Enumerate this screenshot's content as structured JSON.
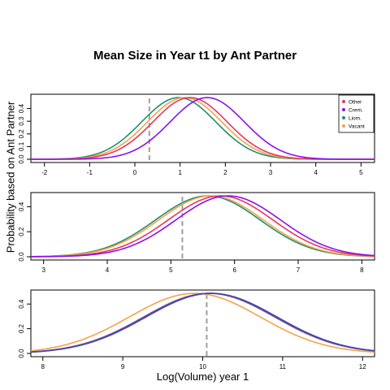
{
  "chart_data": [
    {
      "type": "line",
      "title": "Mean Size in Year t1 by Ant Partner",
      "ylabel": "Probability based on Ant Partner",
      "xlabel": "",
      "xlim": [
        -2.3,
        5.3
      ],
      "ylim": [
        0,
        0.5
      ],
      "x_ticks": [
        -2,
        -1,
        0,
        1,
        2,
        3,
        4,
        5
      ],
      "y_ticks": [
        0.0,
        0.1,
        0.2,
        0.3,
        0.4
      ],
      "vline": 0.32,
      "legend": {
        "placement": "top-right",
        "entries": [
          {
            "name": "Other",
            "color": "#e8365e"
          },
          {
            "name": "Crem.",
            "color": "#8a12ee"
          },
          {
            "name": "Liom.",
            "color": "#1e8f6e"
          },
          {
            "name": "Vacant",
            "color": "#f5a24a"
          }
        ]
      },
      "series": [
        {
          "name": "Liom.",
          "color": "#1e8f6e",
          "mean": 0.97,
          "sd": 0.82
        },
        {
          "name": "Vacant",
          "color": "#f5a24a",
          "mean": 1.1,
          "sd": 0.82
        },
        {
          "name": "Other",
          "color": "#e8365e",
          "mean": 1.22,
          "sd": 0.82
        },
        {
          "name": "Crem.",
          "color": "#8a12ee",
          "mean": 1.6,
          "sd": 0.82
        }
      ]
    },
    {
      "type": "line",
      "xlabel": "",
      "xlim": [
        2.8,
        8.2
      ],
      "ylim": [
        0,
        0.5
      ],
      "x_ticks": [
        3,
        4,
        5,
        6,
        7,
        8
      ],
      "y_ticks": [
        0.0,
        0.2,
        0.4
      ],
      "vline": 5.18,
      "series": [
        {
          "name": "Liom.",
          "color": "#1e8f6e",
          "mean": 5.58,
          "sd": 0.82
        },
        {
          "name": "Vacant",
          "color": "#f5a24a",
          "mean": 5.63,
          "sd": 0.82
        },
        {
          "name": "Other",
          "color": "#e8365e",
          "mean": 5.78,
          "sd": 0.82
        },
        {
          "name": "Crem.",
          "color": "#8a12ee",
          "mean": 5.9,
          "sd": 0.82
        }
      ]
    },
    {
      "type": "line",
      "xlabel": "Log(Volume) year 1",
      "xlim": [
        7.85,
        12.15
      ],
      "ylim": [
        0,
        0.5
      ],
      "x_ticks": [
        8,
        9,
        10,
        11,
        12
      ],
      "y_ticks": [
        0.0,
        0.2,
        0.4
      ],
      "vline": 10.05,
      "series": [
        {
          "name": "Vacant",
          "color": "#f5a24a",
          "mean": 9.9,
          "sd": 0.82
        },
        {
          "name": "Liom.",
          "color": "#1e8f6e",
          "mean": 10.08,
          "sd": 0.82
        },
        {
          "name": "Other",
          "color": "#e8365e",
          "mean": 10.09,
          "sd": 0.82
        },
        {
          "name": "Crem.",
          "color": "#8a12ee",
          "mean": 10.1,
          "sd": 0.82
        },
        {
          "name": "",
          "color": "#3b4fa8",
          "mean": 10.11,
          "sd": 0.82
        }
      ]
    }
  ]
}
